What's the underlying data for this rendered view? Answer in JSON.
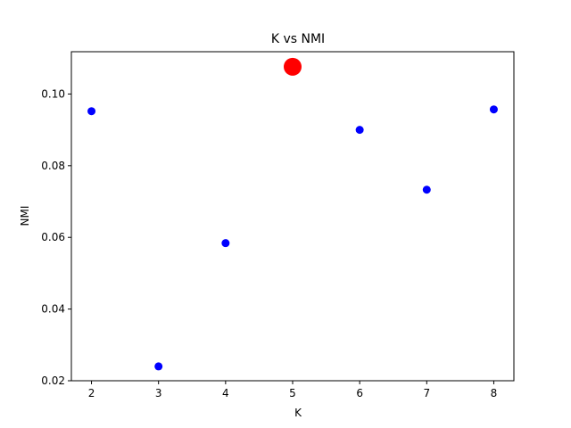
{
  "chart_data": {
    "type": "scatter",
    "title": "K vs NMI",
    "xlabel": "K",
    "ylabel": "NMI",
    "xlim": [
      1.7,
      8.3
    ],
    "ylim": [
      0.02,
      0.1118
    ],
    "xticks": [
      2,
      3,
      4,
      5,
      6,
      7,
      8
    ],
    "xtick_labels": [
      "2",
      "3",
      "4",
      "5",
      "6",
      "7",
      "8"
    ],
    "yticks": [
      0.02,
      0.04,
      0.06,
      0.08,
      0.1
    ],
    "ytick_labels": [
      "0.02",
      "0.04",
      "0.06",
      "0.08",
      "0.10"
    ],
    "grid": false,
    "series": [
      {
        "color": "#0000ff",
        "marker": "circle",
        "x": [
          2,
          3,
          4,
          6,
          7,
          8
        ],
        "y": [
          0.0952,
          0.024,
          0.0584,
          0.09,
          0.0733,
          0.0957
        ]
      },
      {
        "color": "#ff0000",
        "marker": "circle-large",
        "x": [
          5
        ],
        "y": [
          0.1076
        ]
      }
    ]
  }
}
